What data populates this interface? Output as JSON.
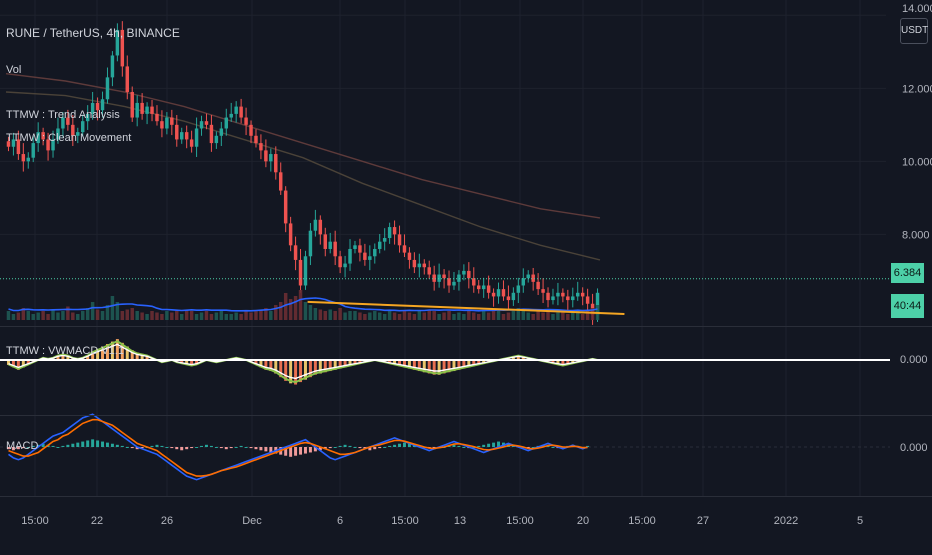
{
  "header": {
    "symbol": "RUNE / TetherUS, 4h, BINANCE",
    "indicators": [
      "Vol",
      "TTMW : Trend Analysis",
      "TTMW : Clean Movement"
    ]
  },
  "panes": {
    "macd_custom_label": "TTMW : VWMACD V1.1",
    "macd_label": "MACD",
    "zero_label": "0.000"
  },
  "price_scale": {
    "currency": "USDT",
    "ticks": [
      "14.000",
      "12.000",
      "10.000",
      "8.000"
    ],
    "last_price": "6.384",
    "countdown": "40:44"
  },
  "time_axis": {
    "ticks": [
      "15:00",
      "22",
      "26",
      "Dec",
      "6",
      "15:00",
      "13",
      "15:00",
      "20",
      "15:00",
      "27",
      "2022",
      "5"
    ]
  },
  "colors": {
    "background": "#131722",
    "up": "#26a69a",
    "down": "#ef5350",
    "trendline": "#f5a623",
    "last_price": "#4dd0a8",
    "volume_ma": "#2962ff",
    "macd_line": "#2962ff",
    "signal_line": "#ff6d00"
  },
  "chart_data": {
    "type": "candlestick",
    "price_ylim": [
      5.6,
      14.2
    ],
    "closes": [
      10.4,
      10.6,
      10.2,
      10.0,
      10.1,
      10.5,
      10.8,
      10.6,
      10.3,
      10.6,
      10.9,
      11.2,
      11.0,
      10.7,
      10.8,
      11.1,
      11.3,
      11.6,
      11.4,
      11.7,
      12.3,
      12.9,
      13.6,
      12.6,
      11.9,
      11.2,
      11.6,
      11.3,
      11.5,
      11.3,
      11.1,
      10.9,
      11.2,
      11.0,
      10.6,
      10.8,
      10.6,
      10.4,
      10.9,
      11.1,
      11.0,
      10.5,
      10.7,
      10.9,
      11.2,
      11.3,
      11.5,
      11.2,
      11.0,
      10.7,
      10.5,
      10.3,
      10.0,
      10.2,
      9.7,
      9.2,
      8.3,
      7.7,
      7.3,
      6.6,
      7.4,
      8.1,
      8.4,
      8.0,
      7.6,
      7.8,
      7.4,
      7.1,
      7.2,
      7.6,
      7.7,
      7.5,
      7.3,
      7.4,
      7.6,
      7.8,
      7.9,
      8.2,
      8.0,
      7.7,
      7.5,
      7.3,
      7.1,
      7.2,
      7.1,
      6.9,
      6.7,
      6.9,
      6.8,
      6.6,
      6.7,
      6.9,
      7.0,
      6.8,
      6.6,
      6.5,
      6.6,
      6.4,
      6.3,
      6.5,
      6.3,
      6.2,
      6.4,
      6.6,
      6.8,
      6.9,
      6.7,
      6.5,
      6.4,
      6.2,
      6.3,
      6.4,
      6.3,
      6.2,
      6.3,
      6.4,
      6.3,
      6.1,
      5.8,
      6.4
    ],
    "ma_lines": [
      {
        "values": [
          12.4,
          12.2,
          11.9,
          11.5,
          11.0,
          10.5,
          10.0,
          9.5,
          9.1,
          8.7,
          8.45
        ],
        "color": "#5d3a3a"
      },
      {
        "values": [
          11.9,
          11.8,
          11.5,
          11.1,
          10.6,
          10.1,
          9.4,
          8.8,
          8.2,
          7.7,
          7.3
        ],
        "color": "#4a4238"
      }
    ],
    "trendline": {
      "from": [
        0.33,
        6.15
      ],
      "to": [
        0.67,
        5.82
      ]
    },
    "volume": [
      0.3,
      0.2,
      0.25,
      0.4,
      0.3,
      0.2,
      0.25,
      0.3,
      0.2,
      0.35,
      0.25,
      0.3,
      0.45,
      0.25,
      0.2,
      0.3,
      0.4,
      0.6,
      0.35,
      0.3,
      0.5,
      0.8,
      0.6,
      0.3,
      0.35,
      0.4,
      0.3,
      0.25,
      0.2,
      0.3,
      0.25,
      0.2,
      0.3,
      0.25,
      0.3,
      0.2,
      0.35,
      0.3,
      0.2,
      0.25,
      0.3,
      0.2,
      0.25,
      0.3,
      0.2,
      0.2,
      0.25,
      0.2,
      0.3,
      0.25,
      0.3,
      0.35,
      0.4,
      0.3,
      0.5,
      0.6,
      0.9,
      0.7,
      0.8,
      1.0,
      0.6,
      0.5,
      0.4,
      0.35,
      0.3,
      0.35,
      0.3,
      0.4,
      0.25,
      0.3,
      0.3,
      0.25,
      0.2,
      0.25,
      0.3,
      0.25,
      0.2,
      0.3,
      0.25,
      0.2,
      0.3,
      0.25,
      0.2,
      0.3,
      0.25,
      0.35,
      0.3,
      0.2,
      0.25,
      0.3,
      0.2,
      0.25,
      0.2,
      0.3,
      0.25,
      0.2,
      0.3,
      0.25,
      0.35,
      0.3,
      0.2,
      0.25,
      0.3,
      0.4,
      0.3,
      0.25,
      0.2,
      0.3,
      0.25,
      0.3,
      0.2,
      0.25,
      0.3,
      0.2,
      0.25,
      0.3,
      0.2,
      0.3,
      0.4,
      0.5
    ],
    "vwmacd_hist": [
      -0.2,
      -0.3,
      -0.4,
      -0.3,
      -0.2,
      -0.1,
      0.0,
      0.1,
      0.05,
      0.1,
      0.2,
      0.25,
      0.2,
      0.1,
      0.05,
      0.1,
      0.2,
      0.35,
      0.45,
      0.55,
      0.65,
      0.75,
      0.85,
      0.7,
      0.55,
      0.4,
      0.3,
      0.25,
      0.2,
      0.1,
      0.0,
      -0.1,
      -0.05,
      0.0,
      -0.1,
      -0.15,
      -0.2,
      -0.25,
      -0.2,
      -0.1,
      0.0,
      -0.05,
      -0.1,
      -0.05,
      0.0,
      0.05,
      0.1,
      0.05,
      0.0,
      -0.1,
      -0.2,
      -0.3,
      -0.4,
      -0.45,
      -0.55,
      -0.7,
      -0.85,
      -0.95,
      -1.0,
      -0.9,
      -0.8,
      -0.7,
      -0.6,
      -0.55,
      -0.5,
      -0.45,
      -0.4,
      -0.35,
      -0.3,
      -0.25,
      -0.2,
      -0.15,
      -0.1,
      -0.05,
      0.0,
      -0.05,
      -0.1,
      -0.15,
      -0.2,
      -0.25,
      -0.3,
      -0.35,
      -0.4,
      -0.45,
      -0.5,
      -0.55,
      -0.6,
      -0.6,
      -0.55,
      -0.5,
      -0.45,
      -0.4,
      -0.35,
      -0.3,
      -0.25,
      -0.2,
      -0.15,
      -0.1,
      -0.05,
      0.0,
      0.05,
      0.1,
      0.15,
      0.2,
      0.15,
      0.1,
      0.05,
      0.0,
      -0.05,
      -0.1,
      -0.15,
      -0.2,
      -0.25,
      -0.2,
      -0.15,
      -0.1,
      -0.05,
      0.0,
      0.05,
      0.0
    ],
    "macd_hist": [
      -0.1,
      -0.15,
      -0.1,
      -0.05,
      0.0,
      0.05,
      0.1,
      0.15,
      0.1,
      0.05,
      0.0,
      0.05,
      0.1,
      0.15,
      0.2,
      0.25,
      0.3,
      0.35,
      0.3,
      0.25,
      0.2,
      0.15,
      0.1,
      0.05,
      0.0,
      -0.05,
      -0.1,
      -0.05,
      0.0,
      0.05,
      0.1,
      0.05,
      0.0,
      -0.05,
      -0.1,
      -0.15,
      -0.1,
      -0.05,
      0.0,
      0.05,
      0.1,
      0.05,
      0.0,
      -0.05,
      -0.1,
      -0.05,
      0.0,
      0.05,
      0.0,
      -0.05,
      -0.1,
      -0.15,
      -0.2,
      -0.25,
      -0.3,
      -0.35,
      -0.4,
      -0.45,
      -0.4,
      -0.35,
      -0.3,
      -0.25,
      -0.2,
      -0.15,
      -0.1,
      -0.05,
      0.0,
      0.05,
      0.1,
      0.05,
      0.0,
      -0.05,
      -0.1,
      -0.15,
      -0.1,
      -0.05,
      0.0,
      0.05,
      0.1,
      0.15,
      0.2,
      0.15,
      0.1,
      0.05,
      0.0,
      -0.05,
      -0.1,
      -0.05,
      0.0,
      0.05,
      0.1,
      0.05,
      0.0,
      -0.05,
      0.0,
      0.05,
      0.1,
      0.15,
      0.2,
      0.25,
      0.2,
      0.15,
      0.1,
      0.05,
      0.0,
      -0.05,
      0.0,
      0.05,
      0.1,
      0.05,
      0.0,
      -0.05,
      0.0,
      0.05,
      0.1,
      0.05,
      0.0,
      0.05
    ],
    "macd_line": [
      -0.2,
      -0.3,
      -0.35,
      -0.3,
      -0.2,
      -0.1,
      0.0,
      0.1,
      0.2,
      0.3,
      0.35,
      0.4,
      0.5,
      0.6,
      0.7,
      0.8,
      0.85,
      0.9,
      0.8,
      0.7,
      0.6,
      0.5,
      0.4,
      0.3,
      0.2,
      0.1,
      0.0,
      -0.05,
      -0.1,
      -0.15,
      -0.2,
      -0.3,
      -0.4,
      -0.5,
      -0.6,
      -0.7,
      -0.8,
      -0.85,
      -0.9,
      -0.85,
      -0.8,
      -0.75,
      -0.7,
      -0.65,
      -0.6,
      -0.55,
      -0.5,
      -0.45,
      -0.4,
      -0.35,
      -0.3,
      -0.25,
      -0.2,
      -0.15,
      -0.1,
      -0.05,
      0.0,
      0.05,
      0.1,
      0.15,
      0.2,
      0.1,
      0.0,
      -0.1,
      -0.2,
      -0.3,
      -0.35,
      -0.3,
      -0.25,
      -0.2,
      -0.15,
      -0.1,
      -0.05,
      0.0,
      0.05,
      0.1,
      0.15,
      0.2,
      0.25,
      0.2,
      0.15,
      0.1,
      0.05,
      0.0,
      -0.05,
      -0.1,
      -0.05,
      0.0,
      0.05,
      0.1,
      0.15,
      0.1,
      0.05,
      0.0,
      -0.05,
      -0.1,
      -0.15,
      -0.1,
      -0.05,
      0.0,
      0.05,
      0.1,
      0.05,
      0.0,
      -0.05,
      -0.1,
      -0.05,
      0.0,
      0.05,
      0.1,
      0.05,
      0.0,
      -0.05,
      0.0,
      0.05,
      0.0,
      -0.05,
      0.0
    ],
    "signal_line": [
      -0.1,
      -0.15,
      -0.2,
      -0.25,
      -0.25,
      -0.2,
      -0.15,
      -0.05,
      0.05,
      0.15,
      0.2,
      0.3,
      0.35,
      0.45,
      0.55,
      0.65,
      0.7,
      0.75,
      0.75,
      0.7,
      0.65,
      0.6,
      0.5,
      0.4,
      0.3,
      0.2,
      0.1,
      0.05,
      0.0,
      -0.05,
      -0.1,
      -0.2,
      -0.3,
      -0.4,
      -0.5,
      -0.6,
      -0.7,
      -0.75,
      -0.8,
      -0.8,
      -0.78,
      -0.75,
      -0.7,
      -0.65,
      -0.62,
      -0.58,
      -0.55,
      -0.5,
      -0.45,
      -0.4,
      -0.35,
      -0.3,
      -0.25,
      -0.2,
      -0.15,
      -0.1,
      -0.05,
      0.0,
      0.05,
      0.1,
      0.12,
      0.1,
      0.05,
      0.0,
      -0.05,
      -0.1,
      -0.15,
      -0.2,
      -0.2,
      -0.18,
      -0.15,
      -0.1,
      -0.05,
      0.0,
      0.03,
      0.06,
      0.1,
      0.14,
      0.18,
      0.18,
      0.16,
      0.12,
      0.08,
      0.04,
      0.0,
      -0.03,
      -0.04,
      -0.02,
      0.0,
      0.04,
      0.08,
      0.09,
      0.07,
      0.04,
      0.01,
      -0.03,
      -0.07,
      -0.08,
      -0.06,
      -0.03,
      0.0,
      0.04,
      0.05,
      0.03,
      0.0,
      -0.04,
      -0.05,
      -0.03,
      0.0,
      0.04,
      0.05,
      0.03,
      0.0,
      0.0,
      0.02,
      0.01,
      -0.02,
      -0.01
    ],
    "macd_ylim": [
      -1.1,
      1.1
    ]
  }
}
